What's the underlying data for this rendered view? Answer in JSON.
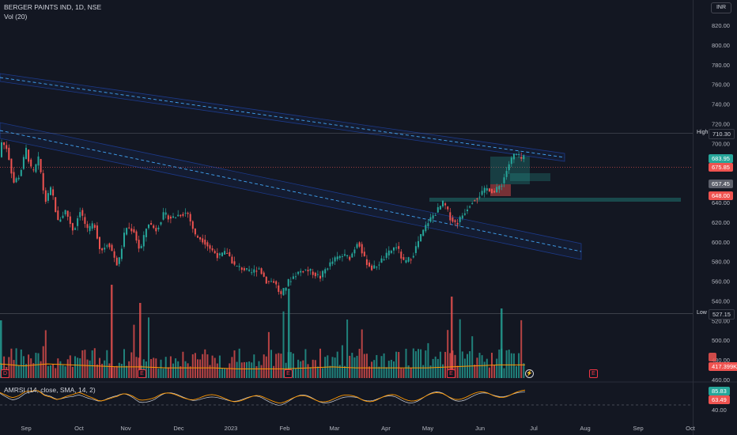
{
  "header": {
    "symbol_line": "BERGER PAINTS IND, 1D, NSE",
    "volume_label": "Vol (20)",
    "currency": "INR"
  },
  "rsi_header": "AMRSI (14, close, SMA, 14, 2)",
  "badges": {
    "high_label": "High",
    "high_value": "710.30",
    "low_label": "Low",
    "low_value": "527.15",
    "tag1": "683.95",
    "tag2": "675.85",
    "tag3": "657.45",
    "tag4": "648.00",
    "vol_tag": "417.399K",
    "rsi1": "85.83",
    "rsi2": "63.49"
  },
  "event_markers": [
    "D",
    "E",
    "E",
    "E",
    "E"
  ],
  "colors": {
    "background": "#131722",
    "up": "#26a69a",
    "down": "#ef5350",
    "channel": "#2962ff",
    "volume_ma": "#ff9800",
    "rsi": "#ff9800",
    "rsi_signal": "#d1d4dc"
  },
  "chart_data": {
    "type": "candlestick",
    "title": "BERGER PAINTS IND, 1D, NSE",
    "price_axis": {
      "ticks": [
        "820.00",
        "800.00",
        "780.00",
        "760.00",
        "740.00",
        "720.00",
        "700.00",
        "680.00",
        "660.00",
        "640.00",
        "620.00",
        "600.00",
        "580.00",
        "560.00",
        "540.00",
        "520.00",
        "500.00",
        "480.00",
        "460.00"
      ],
      "range": [
        460,
        828
      ]
    },
    "rsi_axis": {
      "ticks": [
        "40.00"
      ]
    },
    "time_axis": [
      "Sep",
      "Oct",
      "Nov",
      "Dec",
      "2023",
      "Feb",
      "Mar",
      "Apr",
      "May",
      "Jun",
      "Jul",
      "Aug",
      "Sep",
      "Oct"
    ],
    "high": 710.3,
    "low": 527.15,
    "path": [
      [
        0,
        702
      ],
      [
        8,
        695
      ],
      [
        16,
        660
      ],
      [
        24,
        668
      ],
      [
        32,
        694
      ],
      [
        40,
        668
      ],
      [
        48,
        685
      ],
      [
        56,
        640
      ],
      [
        64,
        655
      ],
      [
        72,
        620
      ],
      [
        82,
        632
      ],
      [
        92,
        610
      ],
      [
        100,
        633
      ],
      [
        110,
        610
      ],
      [
        118,
        620
      ],
      [
        126,
        590
      ],
      [
        136,
        600
      ],
      [
        148,
        575
      ],
      [
        158,
        615
      ],
      [
        168,
        612
      ],
      [
        176,
        590
      ],
      [
        186,
        620
      ],
      [
        196,
        612
      ],
      [
        206,
        628
      ],
      [
        216,
        624
      ],
      [
        226,
        628
      ],
      [
        236,
        630
      ],
      [
        246,
        606
      ],
      [
        256,
        602
      ],
      [
        266,
        592
      ],
      [
        276,
        585
      ],
      [
        286,
        590
      ],
      [
        296,
        575
      ],
      [
        306,
        573
      ],
      [
        316,
        568
      ],
      [
        326,
        574
      ],
      [
        336,
        560
      ],
      [
        346,
        560
      ],
      [
        354,
        545
      ],
      [
        364,
        560
      ],
      [
        374,
        568
      ],
      [
        384,
        572
      ],
      [
        394,
        569
      ],
      [
        404,
        564
      ],
      [
        412,
        574
      ],
      [
        422,
        582
      ],
      [
        432,
        586
      ],
      [
        442,
        584
      ],
      [
        452,
        602
      ],
      [
        460,
        582
      ],
      [
        470,
        572
      ],
      [
        480,
        580
      ],
      [
        490,
        588
      ],
      [
        500,
        596
      ],
      [
        510,
        578
      ],
      [
        520,
        585
      ],
      [
        530,
        604
      ],
      [
        540,
        620
      ],
      [
        550,
        630
      ],
      [
        560,
        640
      ],
      [
        568,
        625
      ],
      [
        576,
        618
      ],
      [
        586,
        630
      ],
      [
        596,
        642
      ],
      [
        606,
        648
      ],
      [
        616,
        655
      ],
      [
        624,
        650
      ],
      [
        634,
        660
      ],
      [
        642,
        678
      ],
      [
        650,
        690
      ],
      [
        658,
        684
      ],
      [
        664,
        686
      ]
    ],
    "volume_ma": [
      [
        0,
        476
      ],
      [
        30,
        474
      ],
      [
        60,
        476
      ],
      [
        90,
        475
      ],
      [
        120,
        474
      ],
      [
        150,
        473
      ],
      [
        180,
        473
      ],
      [
        210,
        472
      ],
      [
        240,
        472
      ],
      [
        270,
        472
      ],
      [
        300,
        471
      ],
      [
        330,
        471
      ],
      [
        360,
        471
      ],
      [
        390,
        472
      ],
      [
        420,
        473
      ],
      [
        450,
        472
      ],
      [
        480,
        472
      ],
      [
        510,
        472
      ],
      [
        540,
        472
      ],
      [
        570,
        473
      ],
      [
        600,
        474
      ],
      [
        630,
        475
      ],
      [
        664,
        475
      ]
    ],
    "rsi_levels": {
      "upper": 70,
      "lower": 30
    }
  }
}
